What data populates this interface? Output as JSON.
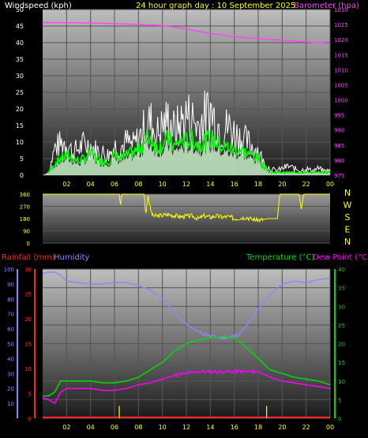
{
  "header": {
    "left_label": "Windspeed (kph)",
    "center_label": "24 hour graph day : 10 September 2025",
    "right_label": "Barometer (hpa)"
  },
  "bottom_header": {
    "rainfall_label": "Rainfall (mm)",
    "humidity_label": "Humidity",
    "temperature_label": "Temperature (°C)",
    "dewpoint_label": "Dew Point (°C)"
  },
  "colors": {
    "windspeed": "#ffffff",
    "windgust": "#ffffff",
    "windavg": "#00ff00",
    "barometer": "#ff44ff",
    "direction": "#ffff00",
    "humidity": "#8888ff",
    "temperature": "#00dd00",
    "dewpoint": "#ff00ff",
    "rainfall": "#ff2222",
    "rainrate": "#ffff00",
    "time_axis": "#ffff00",
    "grid": "#555555"
  },
  "chart_data": [
    {
      "type": "line",
      "name": "wind-barometer",
      "xticks": [
        "02",
        "04",
        "06",
        "08",
        "10",
        "12",
        "14",
        "16",
        "18",
        "20",
        "22",
        "00"
      ],
      "y_left_ticks": [
        0,
        5,
        10,
        15,
        20,
        25,
        30,
        35,
        40,
        45,
        50
      ],
      "y_left_lim": [
        0,
        50
      ],
      "y_right_ticks": [
        975,
        980,
        985,
        990,
        995,
        1000,
        1005,
        1010,
        1015,
        1020,
        1025,
        1030
      ],
      "y_right_lim": [
        975,
        1030
      ],
      "grid": true,
      "series": [
        {
          "key": "gust",
          "x": [
            0.5,
            1,
            1.5,
            2,
            2.5,
            3,
            3.5,
            4,
            4.5,
            5,
            5.5,
            6,
            6.5,
            7,
            7.5,
            8,
            8.5,
            9,
            9.5,
            10,
            10.5,
            11,
            11.5,
            12,
            12.5,
            13,
            13.5,
            14,
            14.5,
            15,
            15.5,
            16,
            16.5,
            17,
            17.5,
            18,
            18.5,
            19,
            19.5,
            20,
            20.5,
            21,
            21.5,
            22,
            22.5,
            23,
            23.5,
            24
          ],
          "values": [
            1,
            12,
            14,
            15,
            10,
            12,
            14,
            13,
            11,
            10,
            9,
            13,
            12,
            15,
            13,
            16,
            21,
            24,
            18,
            22,
            25,
            20,
            23,
            27,
            25,
            22,
            26,
            29,
            24,
            20,
            22,
            19,
            17,
            15,
            13,
            11,
            5,
            3,
            2,
            3,
            4,
            3,
            2,
            3,
            2,
            3,
            2,
            2
          ]
        },
        {
          "key": "avg",
          "x": [
            0.5,
            1,
            1.5,
            2,
            2.5,
            3,
            3.5,
            4,
            4.5,
            5,
            5.5,
            6,
            6.5,
            7,
            7.5,
            8,
            8.5,
            9,
            9.5,
            10,
            10.5,
            11,
            11.5,
            12,
            12.5,
            13,
            13.5,
            14,
            14.5,
            15,
            15.5,
            16,
            16.5,
            17,
            17.5,
            18,
            18.5,
            19,
            19.5,
            20,
            20.5,
            21,
            21.5,
            22,
            22.5,
            23,
            23.5,
            24
          ],
          "values": [
            1,
            4,
            6,
            7,
            6,
            5,
            6,
            8,
            6,
            5,
            5,
            7,
            6,
            7,
            8,
            9,
            12,
            14,
            10,
            11,
            13,
            10,
            12,
            12,
            13,
            11,
            12,
            13,
            12,
            10,
            10,
            9,
            9,
            8,
            7,
            6,
            3,
            1,
            1,
            1,
            1,
            1,
            1,
            1,
            1,
            1,
            1,
            1
          ]
        },
        {
          "key": "barometer",
          "axis": "right",
          "x": [
            0,
            2,
            4,
            6,
            8,
            10,
            12,
            14,
            16,
            18,
            20,
            22,
            24
          ],
          "values": [
            1025.6,
            1025.6,
            1025.5,
            1025.3,
            1025.0,
            1024.7,
            1023.5,
            1022.0,
            1021.0,
            1020.3,
            1019.8,
            1019.3,
            1018.7
          ]
        }
      ]
    },
    {
      "type": "line",
      "name": "wind-direction",
      "y_ticks": [
        0,
        90,
        180,
        270,
        360
      ],
      "y_lim": [
        0,
        360
      ],
      "compass_labels": [
        "N",
        "W",
        "S",
        "E",
        "N"
      ],
      "series": [
        {
          "key": "direction",
          "x": [
            0,
            6.4,
            6.5,
            6.6,
            8.5,
            8.6,
            8.8,
            9.0,
            9.2,
            9.6,
            10.5,
            11.5,
            12.5,
            13.0,
            13.5,
            14.0,
            14.5,
            15.0,
            15.5,
            16.0,
            17.0,
            17.5,
            18.2,
            18.8,
            19.6,
            19.8,
            21.4,
            21.6,
            21.8,
            24
          ],
          "values": [
            360,
            360,
            270,
            360,
            360,
            200,
            350,
            250,
            200,
            200,
            210,
            195,
            200,
            180,
            200,
            190,
            200,
            190,
            195,
            180,
            190,
            175,
            170,
            180,
            180,
            360,
            360,
            250,
            360,
            360
          ]
        }
      ]
    },
    {
      "type": "line",
      "name": "temp-humidity-rain",
      "xticks": [
        "02",
        "04",
        "06",
        "08",
        "10",
        "12",
        "14",
        "16",
        "18",
        "20",
        "22",
        "00"
      ],
      "y_humidity_ticks": [
        10,
        20,
        30,
        40,
        50,
        60,
        70,
        80,
        90,
        100
      ],
      "y_humidity_lim": [
        0,
        100
      ],
      "y_rain_ticks": [
        0,
        5,
        10,
        15,
        20,
        25,
        30
      ],
      "y_rain_lim": [
        0,
        30
      ],
      "y_temp_ticks": [
        0,
        5,
        10,
        15,
        20,
        25,
        30,
        35,
        40
      ],
      "y_temp_lim": [
        0,
        40
      ],
      "grid": true,
      "series": [
        {
          "key": "humidity",
          "axis": "humidity",
          "x": [
            0,
            0.5,
            1,
            1.5,
            2,
            3,
            4,
            5,
            6,
            7,
            8,
            9,
            10,
            11,
            12,
            13,
            14,
            15,
            16,
            16.5,
            17,
            18,
            19,
            20,
            21,
            22,
            23,
            24
          ],
          "values": [
            97,
            98,
            98,
            96,
            92,
            91,
            90,
            90,
            91,
            91,
            89,
            86,
            80,
            71,
            63,
            58,
            55,
            54,
            55,
            57,
            62,
            73,
            83,
            90,
            92,
            91,
            93,
            94
          ]
        },
        {
          "key": "temperature",
          "axis": "temp",
          "x": [
            0,
            0.5,
            1,
            1.5,
            2,
            3,
            4,
            5,
            6,
            7,
            8,
            9,
            10,
            11,
            12,
            13,
            14,
            15,
            16,
            16.5,
            17,
            18,
            19,
            20,
            21,
            22,
            23,
            24
          ],
          "values": [
            6,
            6,
            7,
            10,
            10,
            10,
            10,
            9.5,
            9.5,
            10,
            11,
            13,
            15,
            18,
            20,
            21,
            21.5,
            22,
            21.5,
            20.5,
            19,
            16,
            13,
            12,
            11,
            10.5,
            10,
            9
          ]
        },
        {
          "key": "dewpoint",
          "axis": "temp",
          "x": [
            0,
            0.5,
            1,
            1.5,
            2,
            3,
            4,
            5,
            6,
            7,
            8,
            9,
            10,
            11,
            12,
            13,
            14,
            15,
            16,
            17,
            18,
            19,
            20,
            21,
            22,
            23,
            24
          ],
          "values": [
            5.5,
            5,
            4,
            7,
            8,
            8,
            8,
            7.5,
            7.5,
            8,
            9,
            9.5,
            10.5,
            11.5,
            12,
            12.5,
            12.5,
            12.5,
            12.5,
            12.5,
            12.5,
            11,
            10,
            9.5,
            9,
            8.5,
            8
          ]
        },
        {
          "key": "rainfall",
          "axis": "rain",
          "x": [
            0,
            24
          ],
          "values": [
            0.2,
            0.2
          ]
        },
        {
          "key": "rainrate",
          "axis": "rain",
          "type": "bar",
          "x": [
            6.4,
            18.7
          ],
          "values": [
            2.5,
            2.5
          ]
        }
      ]
    }
  ]
}
